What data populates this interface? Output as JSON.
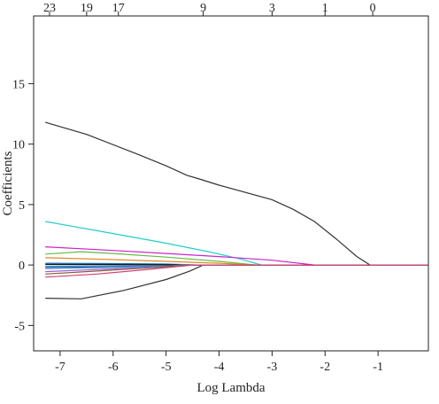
{
  "chart_data": {
    "type": "line",
    "xlabel": "Log Lambda",
    "ylabel": "Coefficients",
    "xlim": [
      -7.5,
      -0.05
    ],
    "ylim": [
      -7.1,
      20.6
    ],
    "grid": false,
    "x_ticks": [
      -7,
      -6,
      -5,
      -4,
      -3,
      -2,
      -1
    ],
    "y_ticks": [
      -5,
      0,
      5,
      10,
      15
    ],
    "top_axis": {
      "ticks": [
        -7.2,
        -6.5,
        -5.9,
        -4.3,
        -3.0,
        -2.0,
        -1.1
      ],
      "labels": [
        "23",
        "19",
        "17",
        "9",
        "3",
        "1",
        "0"
      ]
    },
    "series": [
      {
        "color": "#333333",
        "x": [
          -7.28,
          -6.5,
          -5.5,
          -5.0,
          -4.6,
          -4.4,
          -4.0,
          -3.0,
          -2.6,
          -2.2,
          -1.8,
          -1.4,
          -1.15,
          -0.05
        ],
        "y": [
          11.8,
          10.8,
          9.1,
          8.2,
          7.4,
          7.15,
          6.6,
          5.4,
          4.6,
          3.6,
          2.2,
          0.7,
          0,
          0
        ]
      },
      {
        "color": "#333333",
        "x": [
          -7.28,
          -6.6,
          -5.8,
          -5.0,
          -4.55,
          -4.3,
          -0.05
        ],
        "y": [
          -2.75,
          -2.8,
          -2.1,
          -1.2,
          -0.5,
          0,
          0
        ]
      },
      {
        "color": "#22cccc",
        "x": [
          -7.28,
          -6.0,
          -5.0,
          -4.2,
          -3.6,
          -3.2,
          -0.05
        ],
        "y": [
          3.6,
          2.6,
          1.8,
          1.1,
          0.5,
          0,
          0
        ]
      },
      {
        "color": "#cc22cc",
        "x": [
          -7.28,
          -6.0,
          -5.0,
          -4.0,
          -3.0,
          -2.2,
          -0.05
        ],
        "y": [
          1.5,
          1.2,
          0.95,
          0.7,
          0.4,
          0,
          0
        ]
      },
      {
        "color": "#66bb44",
        "x": [
          -7.28,
          -6.6,
          -6.0,
          -5.0,
          -4.0,
          -3.3,
          -0.05
        ],
        "y": [
          0.9,
          1.1,
          0.95,
          0.65,
          0.3,
          0,
          0
        ]
      },
      {
        "color": "#e08a2a",
        "x": [
          -7.28,
          -6.0,
          -5.0,
          -4.0,
          -3.3,
          -0.05
        ],
        "y": [
          0.6,
          0.45,
          0.3,
          0.15,
          0,
          0
        ]
      },
      {
        "color": "#1f77b4",
        "x": [
          -7.28,
          -6.0,
          -5.0,
          -4.4,
          -0.05
        ],
        "y": [
          0.15,
          0.12,
          0.08,
          0,
          0
        ]
      },
      {
        "color": "#2a9ed6",
        "x": [
          -7.28,
          -6.0,
          -5.0,
          -4.4,
          -0.05
        ],
        "y": [
          -0.1,
          -0.08,
          -0.05,
          0,
          0
        ]
      },
      {
        "color": "#3355aa",
        "x": [
          -7.28,
          -6.0,
          -5.0,
          -4.5,
          -0.05
        ],
        "y": [
          -0.2,
          -0.15,
          -0.08,
          0,
          0
        ]
      },
      {
        "color": "#111111",
        "x": [
          -7.28,
          -6.0,
          -5.0,
          -4.6,
          -0.05
        ],
        "y": [
          0.05,
          0.04,
          0.02,
          0,
          0
        ]
      },
      {
        "color": "#5a8fd6",
        "x": [
          -7.28,
          -6.0,
          -5.0,
          -4.7,
          -0.05
        ],
        "y": [
          -0.3,
          -0.2,
          -0.1,
          0,
          0
        ]
      },
      {
        "color": "#9966cc",
        "x": [
          -7.28,
          -6.2,
          -5.0,
          -4.5,
          -0.05
        ],
        "y": [
          -0.55,
          -0.35,
          -0.15,
          0,
          0
        ]
      },
      {
        "color": "#8a5a3a",
        "x": [
          -7.28,
          -6.3,
          -5.2,
          -4.6,
          -0.05
        ],
        "y": [
          -0.75,
          -0.5,
          -0.2,
          0,
          0
        ]
      },
      {
        "color": "#cc4477",
        "x": [
          -7.28,
          -6.3,
          -5.3,
          -4.5,
          -0.05
        ],
        "y": [
          -1.0,
          -0.75,
          -0.35,
          0,
          0
        ]
      }
    ]
  }
}
